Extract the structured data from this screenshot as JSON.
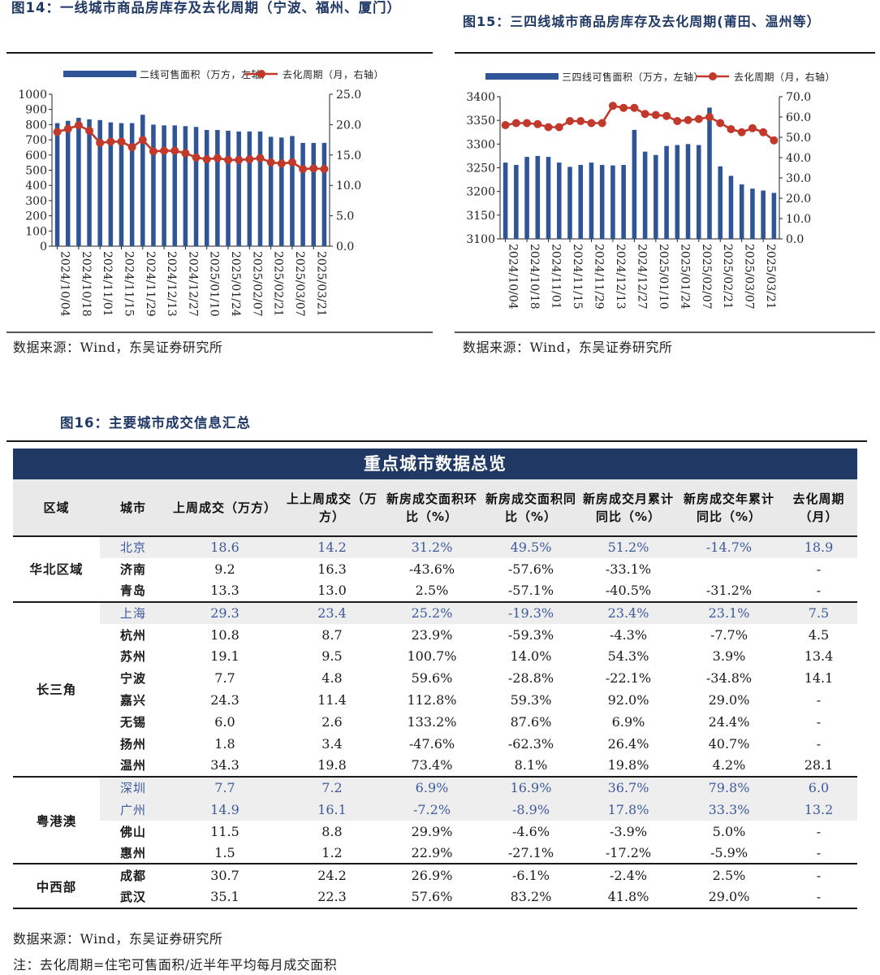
{
  "fig14": {
    "title": "图14：一线城市商品房库存及去化周期（宁波、福州、厦门）",
    "source": "数据来源：Wind，东吴证券研究所",
    "legend_bar": "二线可售面积（万方，左轴）",
    "legend_line": "去化周期（月，右轴）"
  },
  "fig15": {
    "title": "图15：三四线城市商品房库存及去化周期(莆田、温州等）",
    "source": "数据来源：Wind，东吴证券研究所",
    "legend_bar": "三四线可售面积（万方，左轴）",
    "legend_line": "去化周期（月，右轴）"
  },
  "fig16": {
    "title": "图16：主要城市成交信息汇总",
    "banner": "重点城市数据总览",
    "source": "数据来源：Wind，东吴证券研究所",
    "note": "注：去化周期=住宅可售面积/近半年平均每月成交面积"
  },
  "colors": {
    "bar": "#2f5597",
    "line": "#c0392b",
    "banner": "#1f3864",
    "highlight_text": "#3d5a9e"
  },
  "chart_data": [
    {
      "type": "bar+line",
      "x": [
        "2024/10/04",
        "",
        "2024/10/18",
        "",
        "2024/11/01",
        "",
        "2024/11/15",
        "",
        "2024/11/29",
        "",
        "2024/12/13",
        "",
        "2024/12/27",
        "",
        "2025/01/10",
        "",
        "2025/01/24",
        "",
        "2025/02/07",
        "",
        "2025/02/21",
        "",
        "2025/03/07",
        "",
        "2025/03/21",
        ""
      ],
      "x_tick_labels": [
        "2024/10/04",
        "2024/10/18",
        "2024/11/01",
        "2024/11/15",
        "2024/11/29",
        "2024/12/13",
        "2024/12/27",
        "2025/01/10",
        "2025/01/24",
        "2025/02/07",
        "2025/02/21",
        "2025/03/07",
        "2025/03/21"
      ],
      "series": [
        {
          "name": "二线可售面积（万方，左轴）",
          "axis": "left",
          "kind": "bar",
          "values": [
            810,
            825,
            845,
            835,
            830,
            815,
            810,
            810,
            865,
            800,
            795,
            795,
            790,
            785,
            765,
            765,
            760,
            755,
            755,
            755,
            720,
            715,
            725,
            680,
            680,
            680
          ]
        },
        {
          "name": "去化周期（月，右轴）",
          "axis": "right",
          "kind": "line",
          "values": [
            18.8,
            19.3,
            19.9,
            19.0,
            17.0,
            17.2,
            17.2,
            16.3,
            17.5,
            15.6,
            15.7,
            15.7,
            15.3,
            14.6,
            14.3,
            14.5,
            14.2,
            14.2,
            14.3,
            14.5,
            13.8,
            13.6,
            13.8,
            12.7,
            12.8,
            12.7
          ]
        }
      ],
      "ylim_left": [
        0,
        1000
      ],
      "yticks_left": [
        "0",
        "100",
        "200",
        "300",
        "400",
        "500",
        "600",
        "700",
        "800",
        "900",
        "1000"
      ],
      "ylim_right": [
        0,
        25
      ],
      "yticks_right": [
        "0.0",
        "5.0",
        "10.0",
        "15.0",
        "20.0",
        "25.0"
      ],
      "legend": "top",
      "grid": false
    },
    {
      "type": "bar+line",
      "x": [
        "2024/10/04",
        "",
        "2024/10/18",
        "",
        "2024/11/01",
        "",
        "2024/11/15",
        "",
        "2024/11/29",
        "",
        "2024/12/13",
        "",
        "2024/12/27",
        "",
        "2025/01/10",
        "",
        "2025/01/24",
        "",
        "2025/02/07",
        "",
        "2025/02/21",
        "",
        "2025/03/07",
        "",
        "2025/03/21",
        ""
      ],
      "x_tick_labels": [
        "2024/10/04",
        "2024/10/18",
        "2024/11/01",
        "2024/11/15",
        "2024/11/29",
        "2024/12/13",
        "2024/12/27",
        "2025/01/10",
        "2025/01/24",
        "2025/02/07",
        "2025/02/21",
        "2025/03/07",
        "2025/03/21"
      ],
      "series": [
        {
          "name": "三四线可售面积（万方，左轴）",
          "axis": "left",
          "kind": "bar",
          "values": [
            3261,
            3256,
            3273,
            3275,
            3273,
            3261,
            3252,
            3256,
            3261,
            3256,
            3255,
            3256,
            3330,
            3284,
            3277,
            3296,
            3298,
            3300,
            3298,
            3377,
            3253,
            3233,
            3215,
            3206,
            3202,
            3197
          ]
        },
        {
          "name": "去化周期（月，右轴）",
          "axis": "right",
          "kind": "line",
          "values": [
            56.0,
            57.0,
            57.0,
            56.5,
            55.0,
            55.0,
            58.0,
            58.0,
            57.0,
            57.0,
            65.5,
            64.5,
            64.5,
            61.5,
            61.0,
            60.5,
            58.0,
            58.5,
            59.0,
            60.0,
            57.0,
            54.0,
            52.5,
            54.5,
            52.5,
            48.5
          ]
        }
      ],
      "ylim_left": [
        3100,
        3400
      ],
      "yticks_left": [
        "3100",
        "3150",
        "3200",
        "3250",
        "3300",
        "3350",
        "3400"
      ],
      "ylim_right": [
        0,
        70
      ],
      "yticks_right": [
        "0.0",
        "10.0",
        "20.0",
        "30.0",
        "40.0",
        "50.0",
        "60.0",
        "70.0"
      ],
      "legend": "top",
      "grid": false
    },
    {
      "type": "table",
      "headers": [
        "区域",
        "城市",
        "上周成交（万方）",
        "上上周成交（万方）",
        "新房成交面积环比（%）",
        "新房成交面积同比（%）",
        "新房成交月累计同比（%）",
        "新房成交年累计同比（%）",
        "去化周期（月）"
      ],
      "groups": [
        {
          "region": "华北区域",
          "rows": [
            {
              "city": "北京",
              "hl": true,
              "vals": [
                "18.6",
                "14.2",
                "31.2%",
                "49.5%",
                "51.2%",
                "-14.7%",
                "18.9"
              ]
            },
            {
              "city": "济南",
              "hl": false,
              "vals": [
                "9.2",
                "16.3",
                "-43.6%",
                "-57.6%",
                "-33.1%",
                "",
                "-"
              ]
            },
            {
              "city": "青岛",
              "hl": false,
              "vals": [
                "13.3",
                "13.0",
                "2.5%",
                "-57.1%",
                "-40.5%",
                "-31.2%",
                "-"
              ]
            }
          ]
        },
        {
          "region": "长三角",
          "rows": [
            {
              "city": "上海",
              "hl": true,
              "vals": [
                "29.3",
                "23.4",
                "25.2%",
                "-19.3%",
                "23.4%",
                "23.1%",
                "7.5"
              ]
            },
            {
              "city": "杭州",
              "hl": false,
              "vals": [
                "10.8",
                "8.7",
                "23.9%",
                "-59.3%",
                "-4.3%",
                "-7.7%",
                "4.5"
              ]
            },
            {
              "city": "苏州",
              "hl": false,
              "vals": [
                "19.1",
                "9.5",
                "100.7%",
                "14.0%",
                "54.3%",
                "3.9%",
                "13.4"
              ]
            },
            {
              "city": "宁波",
              "hl": false,
              "vals": [
                "7.7",
                "4.8",
                "59.6%",
                "-28.8%",
                "-22.1%",
                "-34.8%",
                "14.1"
              ]
            },
            {
              "city": "嘉兴",
              "hl": false,
              "vals": [
                "24.3",
                "11.4",
                "112.8%",
                "59.3%",
                "92.0%",
                "29.0%",
                "-"
              ]
            },
            {
              "city": "无锡",
              "hl": false,
              "vals": [
                "6.0",
                "2.6",
                "133.2%",
                "87.6%",
                "6.9%",
                "24.4%",
                "-"
              ]
            },
            {
              "city": "扬州",
              "hl": false,
              "vals": [
                "1.8",
                "3.4",
                "-47.6%",
                "-62.3%",
                "26.4%",
                "40.7%",
                "-"
              ]
            },
            {
              "city": "温州",
              "hl": false,
              "vals": [
                "34.3",
                "19.8",
                "73.4%",
                "8.1%",
                "19.8%",
                "4.2%",
                "28.1"
              ]
            }
          ]
        },
        {
          "region": "粤港澳",
          "rows": [
            {
              "city": "深圳",
              "hl": true,
              "vals": [
                "7.7",
                "7.2",
                "6.9%",
                "16.9%",
                "36.7%",
                "79.8%",
                "6.0"
              ]
            },
            {
              "city": "广州",
              "hl": true,
              "vals": [
                "14.9",
                "16.1",
                "-7.2%",
                "-8.9%",
                "17.8%",
                "33.3%",
                "13.2"
              ]
            },
            {
              "city": "佛山",
              "hl": false,
              "vals": [
                "11.5",
                "8.8",
                "29.9%",
                "-4.6%",
                "-3.9%",
                "5.0%",
                "-"
              ]
            },
            {
              "city": "惠州",
              "hl": false,
              "vals": [
                "1.5",
                "1.2",
                "22.9%",
                "-27.1%",
                "-17.2%",
                "-5.9%",
                "-"
              ]
            }
          ]
        },
        {
          "region": "中西部",
          "rows": [
            {
              "city": "成都",
              "hl": false,
              "vals": [
                "30.7",
                "24.2",
                "26.9%",
                "-6.1%",
                "-2.4%",
                "2.5%",
                "-"
              ]
            },
            {
              "city": "武汉",
              "hl": false,
              "vals": [
                "35.1",
                "22.3",
                "57.6%",
                "83.2%",
                "41.8%",
                "29.0%",
                "-"
              ]
            }
          ]
        }
      ]
    }
  ]
}
